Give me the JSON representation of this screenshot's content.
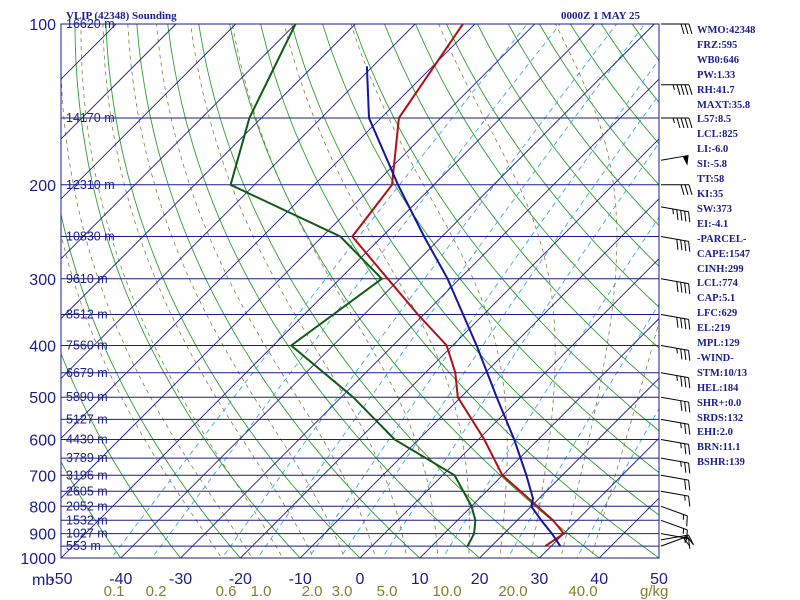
{
  "header": {
    "station_title": "VLIP (42348) Sounding",
    "valid_time": "0000Z  1 MAY 25"
  },
  "indices": [
    "WMO:42348",
    "FRZ:595",
    "WB0:646",
    "PW:1.33",
    "RH:41.7",
    "MAXT:35.8",
    "L57:8.5",
    "LCL:825",
    "LI:-6.0",
    "SI:-5.8",
    "TT:58",
    "KI:35",
    "SW:373",
    "EI:-4.1",
    "-PARCEL-",
    "CAPE:1547",
    "CINH:299",
    "LCL:774",
    "CAP:5.1",
    "LFC:629",
    "EL:219",
    "MPL:129",
    "-WIND-",
    "STM:10/13",
    "HEL:184",
    "SHR+:0.0",
    "SRDS:132",
    "EHI:2.0",
    "BRN:11.1",
    "BSHR:139"
  ],
  "colors": {
    "axis_text": "#1c1c8c",
    "isobar": "#1c1c8c",
    "isotherm": "#1c1c8c",
    "dry_adiabat": "#2aa02a",
    "moist_adiabat": "#8a7a4a",
    "mixing_ratio": "#3aa8e0",
    "temperature": "#b01010",
    "dewpoint": "#105a10",
    "parcel": "#1515a0",
    "mixing_ratio_label": "#8a7a2a",
    "wind": "#000000"
  },
  "chart_data": {
    "type": "skew-t",
    "pressure_axis": {
      "unit_label": "mb",
      "levels": [
        100,
        150,
        200,
        250,
        300,
        350,
        400,
        450,
        500,
        550,
        600,
        650,
        700,
        750,
        800,
        850,
        900,
        950,
        1000
      ],
      "labeled": [
        "100",
        "200",
        "300",
        "400",
        "500",
        "600",
        "700",
        "800",
        "900",
        "1000"
      ]
    },
    "temperature_axis": {
      "range": [
        -50,
        50
      ],
      "labels": [
        "-50",
        "-40",
        "-30",
        "-20",
        "-10",
        "0",
        "10",
        "20",
        "30",
        "40",
        "50"
      ]
    },
    "height_labels": [
      {
        "p": 100,
        "text": "16620 m"
      },
      {
        "p": 150,
        "text": "14170 m"
      },
      {
        "p": 200,
        "text": "12310 m"
      },
      {
        "p": 250,
        "text": "10830 m"
      },
      {
        "p": 300,
        "text": "9610 m"
      },
      {
        "p": 350,
        "text": "8512 m"
      },
      {
        "p": 400,
        "text": "7560 m"
      },
      {
        "p": 450,
        "text": "6679 m"
      },
      {
        "p": 500,
        "text": "5890 m"
      },
      {
        "p": 550,
        "text": "5127 m"
      },
      {
        "p": 600,
        "text": "4430 m"
      },
      {
        "p": 650,
        "text": "3789 m"
      },
      {
        "p": 700,
        "text": "3196 m"
      },
      {
        "p": 750,
        "text": "2605 m"
      },
      {
        "p": 800,
        "text": "2052 m"
      },
      {
        "p": 850,
        "text": "1532 m"
      },
      {
        "p": 900,
        "text": "1027 m"
      },
      {
        "p": 950,
        "text": "553 m"
      }
    ],
    "mixing_ratio_axis": {
      "unit_label": "g/kg",
      "values": [
        "0.1",
        "0.2",
        "0.6",
        "1.0",
        "2.0",
        "3.0",
        "5.0",
        "10.0",
        "20.0",
        "40.0"
      ]
    },
    "series": [
      {
        "name": "temperature",
        "points": [
          [
            950,
            29
          ],
          [
            900,
            30
          ],
          [
            850,
            26
          ],
          [
            800,
            21
          ],
          [
            700,
            10
          ],
          [
            600,
            1
          ],
          [
            500,
            -10.5
          ],
          [
            450,
            -15
          ],
          [
            400,
            -21
          ],
          [
            350,
            -31
          ],
          [
            300,
            -42
          ],
          [
            250,
            -55
          ],
          [
            200,
            -57
          ],
          [
            150,
            -67
          ],
          [
            100,
            -72
          ]
        ]
      },
      {
        "name": "dewpoint",
        "points": [
          [
            950,
            16
          ],
          [
            900,
            15
          ],
          [
            850,
            13
          ],
          [
            800,
            10
          ],
          [
            700,
            2
          ],
          [
            600,
            -14
          ],
          [
            500,
            -28
          ],
          [
            400,
            -47
          ],
          [
            300,
            -43
          ],
          [
            250,
            -57
          ],
          [
            200,
            -84
          ],
          [
            150,
            -92
          ],
          [
            100,
            -100
          ]
        ]
      },
      {
        "name": "parcel",
        "points": [
          [
            950,
            31.5
          ],
          [
            900,
            28
          ],
          [
            850,
            24
          ],
          [
            800,
            20
          ],
          [
            774,
            19
          ],
          [
            700,
            14
          ],
          [
            600,
            6
          ],
          [
            500,
            -4
          ],
          [
            400,
            -16
          ],
          [
            300,
            -32
          ],
          [
            250,
            -43
          ],
          [
            200,
            -56
          ],
          [
            150,
            -72
          ],
          [
            120,
            -81
          ]
        ]
      }
    ],
    "wind_barbs": [
      {
        "p": 950,
        "dir": 250,
        "kt": 20
      },
      {
        "p": 925,
        "dir": 260,
        "kt": 15
      },
      {
        "p": 900,
        "dir": 280,
        "kt": 15
      },
      {
        "p": 850,
        "dir": 290,
        "kt": 15
      },
      {
        "p": 800,
        "dir": 290,
        "kt": 15
      },
      {
        "p": 750,
        "dir": 280,
        "kt": 15
      },
      {
        "p": 700,
        "dir": 280,
        "kt": 20
      },
      {
        "p": 650,
        "dir": 280,
        "kt": 25
      },
      {
        "p": 600,
        "dir": 280,
        "kt": 25
      },
      {
        "p": 550,
        "dir": 280,
        "kt": 25
      },
      {
        "p": 500,
        "dir": 280,
        "kt": 30
      },
      {
        "p": 450,
        "dir": 280,
        "kt": 35
      },
      {
        "p": 400,
        "dir": 280,
        "kt": 35
      },
      {
        "p": 350,
        "dir": 280,
        "kt": 40
      },
      {
        "p": 300,
        "dir": 280,
        "kt": 40
      },
      {
        "p": 250,
        "dir": 280,
        "kt": 40
      },
      {
        "p": 220,
        "dir": 280,
        "kt": 45
      },
      {
        "p": 200,
        "dir": 270,
        "kt": 30
      },
      {
        "p": 180,
        "dir": 260,
        "kt": 50
      },
      {
        "p": 150,
        "dir": 270,
        "kt": 45
      },
      {
        "p": 130,
        "dir": 270,
        "kt": 45
      },
      {
        "p": 100,
        "dir": 270,
        "kt": 30
      }
    ]
  }
}
